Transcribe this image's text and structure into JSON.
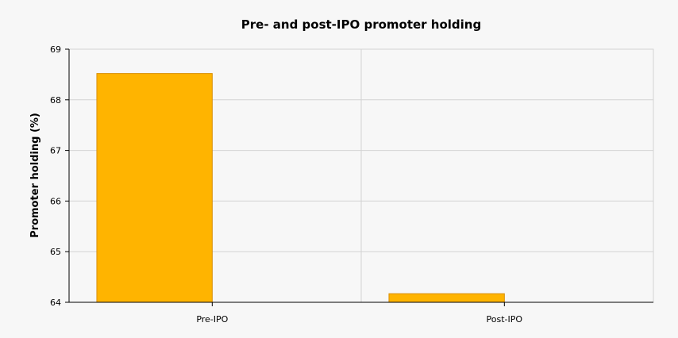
{
  "chart_data": {
    "type": "bar",
    "title": "Pre- and post-IPO promoter holding",
    "xlabel": "",
    "ylabel": "Promoter holding (%)",
    "categories": [
      "Pre-IPO",
      "Post-IPO"
    ],
    "values": [
      68.52,
      64.17
    ],
    "ylim": [
      64,
      69
    ],
    "yticks": [
      "64",
      "65",
      "66",
      "67",
      "68",
      "69"
    ],
    "grid": true,
    "legend": "none"
  },
  "colors": {
    "bar_fill": "#ffb400",
    "bar_stroke": "#d98e00",
    "plot_bg": "#f7f7f7",
    "grid": "#d3d3d3",
    "axis": "#000000"
  }
}
